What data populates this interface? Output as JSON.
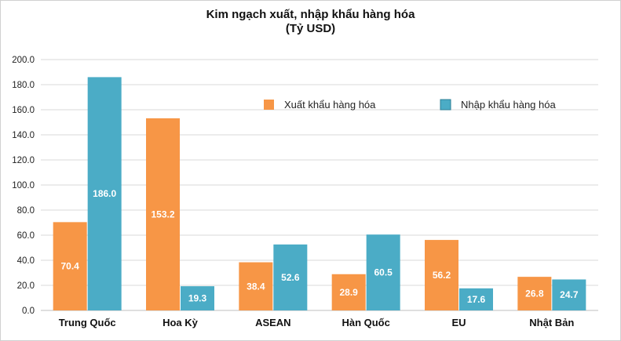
{
  "chart_data": {
    "type": "bar",
    "title": "Kim ngạch xuất, nhập khẩu hàng hóa",
    "subtitle": "(Tỷ USD)",
    "categories": [
      "Trung Quốc",
      "Hoa Kỳ",
      "ASEAN",
      "Hàn Quốc",
      "EU",
      "Nhật Bản"
    ],
    "series": [
      {
        "name": "Xuất khẩu hàng hóa",
        "values": [
          70.4,
          153.2,
          38.4,
          28.9,
          56.2,
          26.8
        ],
        "color": "#F79646"
      },
      {
        "name": "Nhập khẩu hàng hóa",
        "values": [
          186.0,
          19.3,
          52.6,
          60.5,
          17.6,
          24.7
        ],
        "color": "#4BACC6"
      }
    ],
    "ylim": [
      0,
      200
    ],
    "yticks": [
      "0.0",
      "20.0",
      "40.0",
      "60.0",
      "80.0",
      "100.0",
      "120.0",
      "140.0",
      "160.0",
      "180.0",
      "200.0"
    ],
    "ytick_values": [
      0,
      20,
      40,
      60,
      80,
      100,
      120,
      140,
      160,
      180,
      200
    ],
    "grid": true,
    "legend_position": "top-right",
    "data_labels": [
      "70.4",
      "153.2",
      "38.4",
      "28.9",
      "56.2",
      "26.8",
      "186.0",
      "19.3",
      "52.6",
      "60.5",
      "17.6",
      "24.7"
    ]
  }
}
